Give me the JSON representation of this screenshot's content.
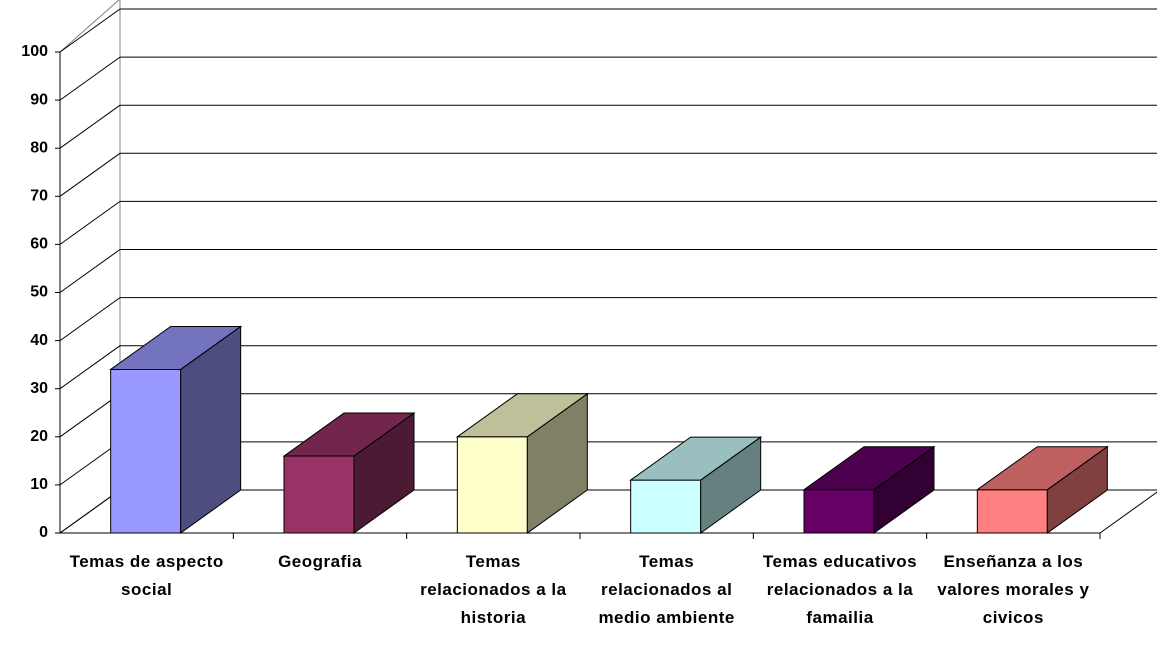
{
  "chart_data": {
    "type": "bar3d",
    "categories": [
      "Temas de aspecto social",
      "Geografia",
      "Temas relacionados a la historia",
      "Temas relacionados al medio ambiente",
      "Temas educativos relacionados a la famailia",
      "Enseñanza a los valores morales y civicos"
    ],
    "values": [
      34,
      16,
      20,
      11,
      9,
      9
    ],
    "colors": [
      "#9999ff",
      "#993366",
      "#ffffcc",
      "#ccffff",
      "#660066",
      "#ff8080"
    ],
    "ylim": [
      0,
      100
    ],
    "yticks": [
      0,
      10,
      20,
      30,
      40,
      50,
      60,
      70,
      80,
      90,
      100
    ],
    "grid": true
  }
}
